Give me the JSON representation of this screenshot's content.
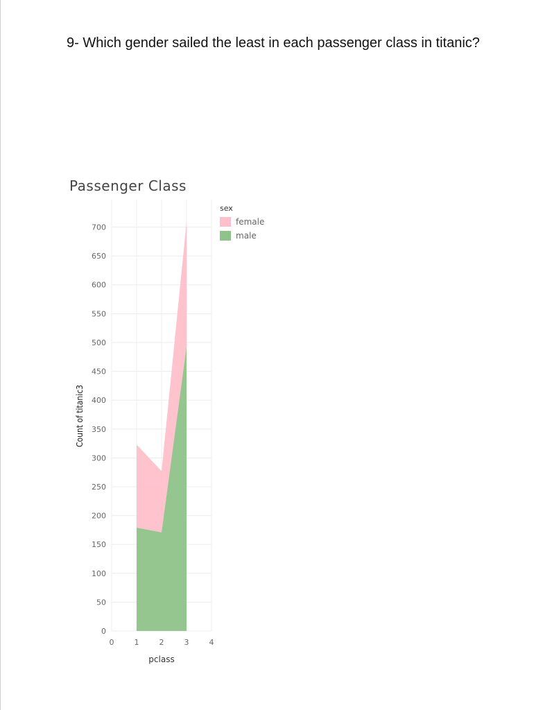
{
  "question": "9- Which gender sailed the least in each passenger class in titanic?",
  "colors": {
    "female": "#ffc0cb",
    "male": "#8fc38a"
  },
  "chart_data": {
    "type": "area",
    "stacked": true,
    "title": "Passenger Class",
    "xlabel": "pclass",
    "ylabel": "Count of titanic3",
    "x": [
      1,
      2,
      3
    ],
    "xlim": [
      0,
      4
    ],
    "xticks": [
      "0",
      "1",
      "2",
      "3",
      "4"
    ],
    "ylim": [
      0,
      700
    ],
    "yticks": [
      "0",
      "50",
      "100",
      "150",
      "200",
      "250",
      "300",
      "350",
      "400",
      "450",
      "500",
      "550",
      "600",
      "650",
      "700"
    ],
    "legend_title": "sex",
    "legend_position": "right",
    "grid": true,
    "series": [
      {
        "name": "female",
        "values": [
          144,
          106,
          216
        ]
      },
      {
        "name": "male",
        "values": [
          179,
          171,
          493
        ]
      }
    ]
  }
}
